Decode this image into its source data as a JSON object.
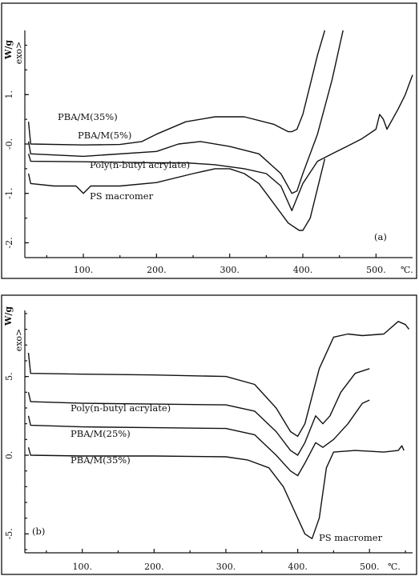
{
  "chart_data": [
    {
      "type": "line",
      "panel_label": "(a)",
      "ylabel": "W/g",
      "exo_label": "exo>",
      "xunit": "℃.",
      "xticks": [
        "100.",
        "200.",
        "300.",
        "400.",
        "500."
      ],
      "yticks": [
        "1.",
        "-0.",
        "-1.",
        "-2."
      ],
      "xlim": [
        20,
        550
      ],
      "ylim": [
        -2.3,
        2.3
      ],
      "series": [
        {
          "name": "PBA/M(35%)",
          "x": [
            25,
            28,
            100,
            150,
            180,
            200,
            240,
            280,
            320,
            360,
            380,
            385,
            392,
            400,
            410,
            420,
            430
          ],
          "y": [
            0.45,
            0.0,
            -0.02,
            -0.01,
            0.05,
            0.2,
            0.45,
            0.55,
            0.55,
            0.4,
            0.25,
            0.25,
            0.3,
            0.6,
            1.2,
            1.8,
            2.3
          ]
        },
        {
          "name": "PBA/M(5%)",
          "x": [
            25,
            28,
            100,
            200,
            230,
            260,
            300,
            340,
            370,
            385,
            392,
            400,
            420,
            440,
            455
          ],
          "y": [
            0.05,
            -0.2,
            -0.25,
            -0.15,
            0.0,
            0.05,
            -0.05,
            -0.2,
            -0.6,
            -1.0,
            -0.95,
            -0.6,
            0.2,
            1.3,
            2.3
          ]
        },
        {
          "name": "Poly(n-butyl acrylate)",
          "x": [
            25,
            28,
            100,
            200,
            240,
            280,
            320,
            350,
            370,
            385,
            400,
            420,
            440,
            460,
            480,
            500,
            505,
            510,
            515,
            530,
            540,
            545,
            550
          ],
          "y": [
            -0.2,
            -0.35,
            -0.36,
            -0.38,
            -0.38,
            -0.42,
            -0.5,
            -0.6,
            -0.85,
            -1.35,
            -0.8,
            -0.35,
            -0.2,
            -0.05,
            0.1,
            0.3,
            0.6,
            0.5,
            0.3,
            0.7,
            1.0,
            1.2,
            1.4
          ]
        },
        {
          "name": "PS macromer",
          "x": [
            25,
            28,
            60,
            90,
            100,
            110,
            150,
            200,
            250,
            280,
            300,
            320,
            340,
            360,
            380,
            395,
            400,
            410,
            420,
            430
          ],
          "y": [
            -0.6,
            -0.8,
            -0.85,
            -0.85,
            -1.0,
            -0.85,
            -0.85,
            -0.78,
            -0.6,
            -0.5,
            -0.5,
            -0.6,
            -0.8,
            -1.2,
            -1.6,
            -1.75,
            -1.75,
            -1.5,
            -0.9,
            -0.3
          ]
        }
      ]
    },
    {
      "type": "line",
      "panel_label": "(b)",
      "ylabel": "W/g",
      "exo_label": "exo>",
      "xunit": "℃.",
      "xticks": [
        "100.",
        "200.",
        "300.",
        "400.",
        "500."
      ],
      "yticks": [
        "5.",
        "0.",
        "-5."
      ],
      "xlim": [
        20,
        560
      ],
      "ylim": [
        -6.2,
        9.2
      ],
      "series": [
        {
          "name": "Poly(n-butyl acrylate)",
          "x": [
            25,
            28,
            100,
            200,
            300,
            340,
            370,
            390,
            400,
            410,
            430,
            450,
            470,
            490,
            520,
            540,
            550,
            555
          ],
          "y": [
            6.5,
            5.2,
            5.15,
            5.1,
            5.0,
            4.5,
            3.0,
            1.5,
            1.2,
            2.0,
            5.5,
            7.5,
            7.7,
            7.6,
            7.7,
            8.5,
            8.3,
            8.0
          ]
        },
        {
          "name": "PBA/M(25%)",
          "x": [
            25,
            28,
            100,
            200,
            300,
            340,
            370,
            390,
            400,
            410,
            425,
            435,
            445,
            460,
            480,
            500
          ],
          "y": [
            4.0,
            3.4,
            3.3,
            3.25,
            3.2,
            2.8,
            1.5,
            0.3,
            0.0,
            0.8,
            2.5,
            2.0,
            2.5,
            4.0,
            5.2,
            5.5
          ]
        },
        {
          "name": "PBA/M(35%)",
          "x": [
            25,
            28,
            100,
            200,
            300,
            340,
            370,
            390,
            400,
            410,
            425,
            435,
            450,
            470,
            490,
            500
          ],
          "y": [
            2.5,
            1.9,
            1.8,
            1.75,
            1.7,
            1.3,
            0.0,
            -1.0,
            -1.3,
            -0.5,
            0.8,
            0.5,
            1.0,
            2.0,
            3.3,
            3.5
          ]
        },
        {
          "name": "PS macromer",
          "x": [
            25,
            28,
            100,
            200,
            300,
            330,
            360,
            380,
            400,
            410,
            420,
            430,
            440,
            450,
            480,
            520,
            540,
            545,
            548
          ],
          "y": [
            0.5,
            0.0,
            -0.05,
            -0.05,
            -0.1,
            -0.3,
            -0.8,
            -2.0,
            -4.0,
            -5.0,
            -5.3,
            -4.0,
            -0.8,
            0.2,
            0.3,
            0.2,
            0.3,
            0.6,
            0.3
          ]
        }
      ]
    }
  ]
}
